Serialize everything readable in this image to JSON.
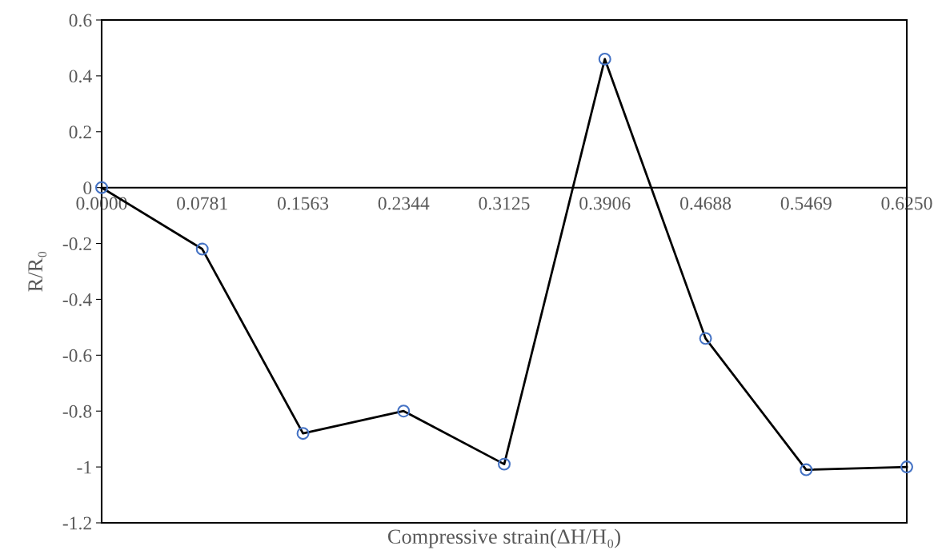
{
  "chart_data": {
    "type": "line",
    "xlabel": "Compressive strain(ΔH/H₀)",
    "ylabel": "R/R₀",
    "x": [
      0,
      0.0781,
      0.1563,
      0.2344,
      0.3125,
      0.3906,
      0.4688,
      0.5469,
      0.625
    ],
    "series": [
      {
        "color": "#000000",
        "marker": "none",
        "values": [
          0,
          -0.22,
          -0.88,
          -0.8,
          -0.99,
          0.46,
          -0.54,
          -1.01,
          -1.0
        ]
      },
      {
        "type": "scatter",
        "color": "#4472c4",
        "values": [
          0,
          -0.22,
          -0.88,
          -0.8,
          -0.99,
          0.46,
          -0.54,
          -1.01,
          -1.0
        ]
      }
    ],
    "xlim": [
      0,
      0.625
    ],
    "xticks": [
      {
        "value": 0,
        "label": "0.0000"
      },
      {
        "value": 0.0781,
        "label": "0.0781"
      },
      {
        "value": 0.1563,
        "label": "0.1563"
      },
      {
        "value": 0.2344,
        "label": "0.2344"
      },
      {
        "value": 0.3125,
        "label": "0.3125"
      },
      {
        "value": 0.3906,
        "label": "0.3906"
      },
      {
        "value": 0.4688,
        "label": "0.4688"
      },
      {
        "value": 0.5469,
        "label": "0.5469"
      },
      {
        "value": 0.625,
        "label": "0.6250"
      }
    ],
    "ylim": [
      -1.2,
      0.6
    ],
    "yticks": [
      {
        "value": -1.2,
        "label": "-1.2"
      },
      {
        "value": -1,
        "label": "-1"
      },
      {
        "value": -0.8,
        "label": "-0.8"
      },
      {
        "value": -0.6,
        "label": "-0.6"
      },
      {
        "value": -0.4,
        "label": "-0.4"
      },
      {
        "value": -0.2,
        "label": "-0.2"
      },
      0,
      0.2,
      0.4,
      0.6
    ],
    "grid": false,
    "marker": "circle",
    "line_style": "solid"
  }
}
